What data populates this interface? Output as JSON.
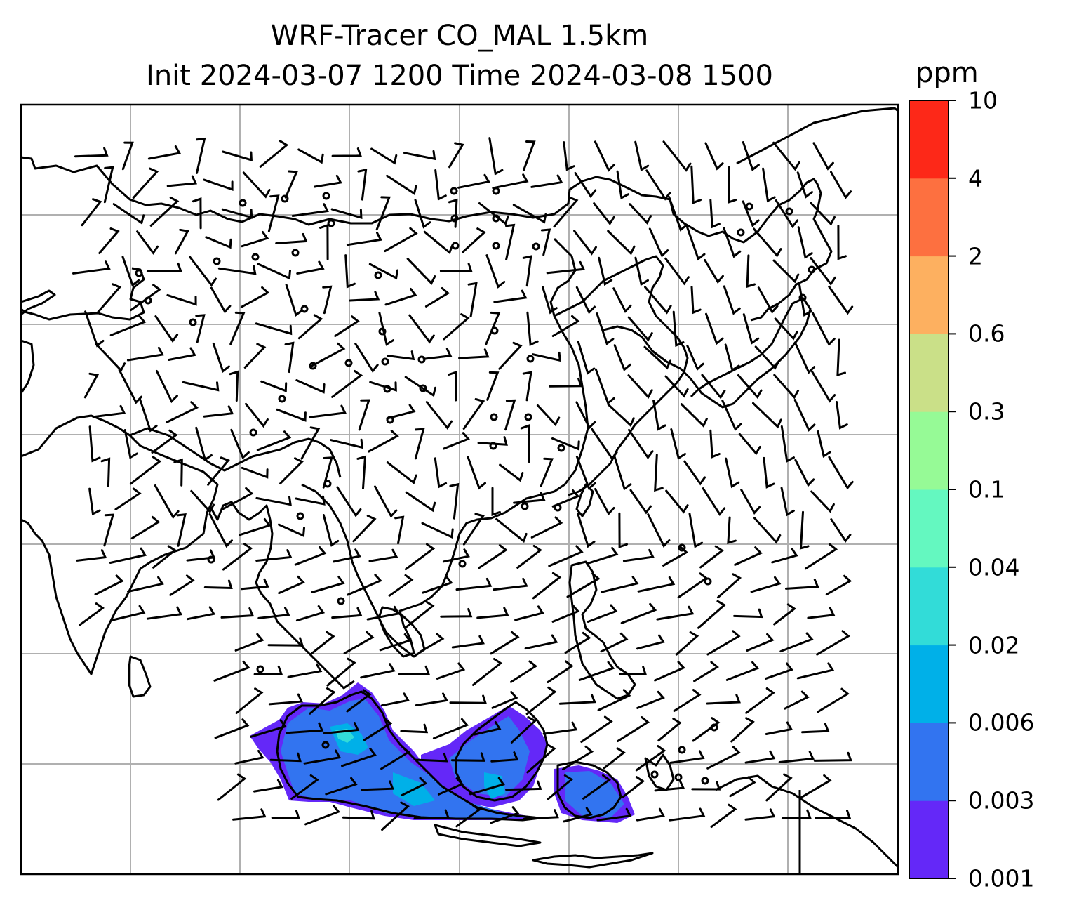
{
  "title": {
    "line1": "WRF-Tracer CO_MAL 1.5km",
    "line2": "Init 2024-03-07 1200 Time 2024-03-08 1500"
  },
  "colorbar": {
    "unit": "ppm",
    "levels": [
      "0.001",
      "0.003",
      "0.006",
      "0.02",
      "0.04",
      "0.1",
      "0.3",
      "0.6",
      "2",
      "4",
      "10"
    ],
    "colors": [
      "#6428f8",
      "#3274f0",
      "#00b0e8",
      "#32dcd8",
      "#64f8c0",
      "#96fa96",
      "#cae088",
      "#fdb060",
      "#fd7040",
      "#fd2818"
    ]
  },
  "map": {
    "region": "South and East Asia, Maritime Continent",
    "gridlines": true,
    "wind_barbs": true,
    "tracer_plume": "CO concentration over Sumatra, Malaysia, Borneo and Java"
  }
}
